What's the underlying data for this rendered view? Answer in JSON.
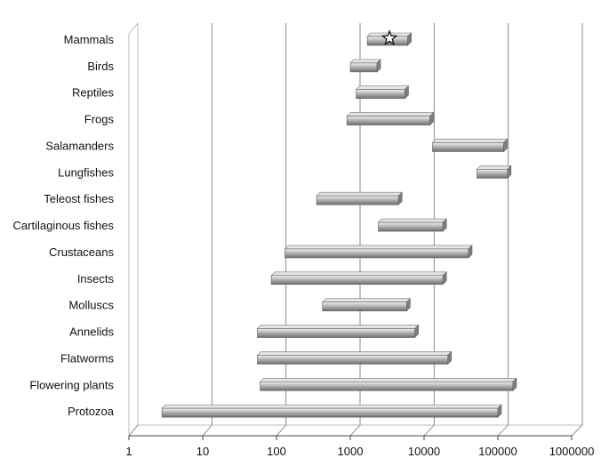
{
  "chart_data": {
    "type": "bar",
    "variant": "floating-range-horizontal-3d",
    "x_scale": "log",
    "xlim": [
      1,
      1000000
    ],
    "ticks": [
      "1",
      "10",
      "100",
      "1000",
      "10000",
      "100000",
      "1000000"
    ],
    "grid": true,
    "legend": "none",
    "bar_color": "#b4b4b4",
    "categories": [
      "Mammals",
      "Birds",
      "Reptiles",
      "Frogs",
      "Salamanders",
      "Lungfishes",
      "Teleost fishes",
      "Cartilaginous fishes",
      "Crustaceans",
      "Insects",
      "Molluscs",
      "Annelids",
      "Flatworms",
      "Flowering plants",
      "Protozoa"
    ],
    "ranges": [
      [
        1700,
        6000
      ],
      [
        1000,
        2300
      ],
      [
        1200,
        5500
      ],
      [
        900,
        12000
      ],
      [
        13000,
        120000
      ],
      [
        52000,
        135000
      ],
      [
        350,
        4500
      ],
      [
        2400,
        18000
      ],
      [
        130,
        40000
      ],
      [
        85,
        18000
      ],
      [
        420,
        5800
      ],
      [
        55,
        7500
      ],
      [
        55,
        21000
      ],
      [
        60,
        160000
      ],
      [
        2.8,
        100000
      ]
    ],
    "markers": [
      {
        "category": "Mammals",
        "value": 3400,
        "symbol": "star"
      }
    ]
  }
}
